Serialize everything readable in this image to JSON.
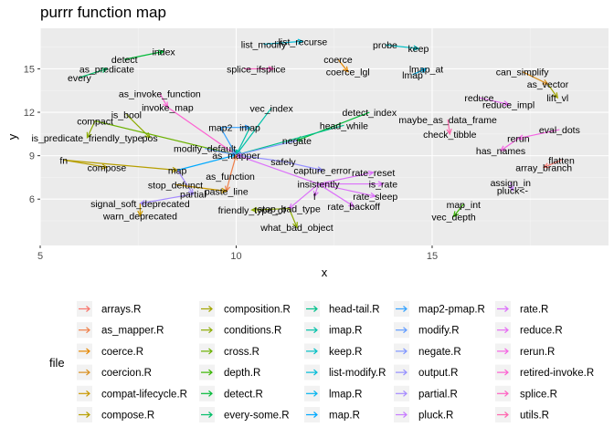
{
  "chart_data": {
    "type": "network",
    "title": "purrr function map",
    "xlabel": "x",
    "ylabel": "y",
    "xlim": [
      5,
      19.5
    ],
    "ylim": [
      2.8,
      17.8
    ],
    "xticks": [
      5,
      10,
      15
    ],
    "yticks": [
      6,
      9,
      12,
      15
    ],
    "grid": true,
    "legend_position": "bottom",
    "legend_title": "file",
    "files": [
      {
        "name": "arrays.R",
        "color": "#F8766D"
      },
      {
        "name": "as_mapper.R",
        "color": "#EF7F49"
      },
      {
        "name": "coerce.R",
        "color": "#E58700"
      },
      {
        "name": "coercion.R",
        "color": "#D98F1F"
      },
      {
        "name": "compat-lifecycle.R",
        "color": "#C99800"
      },
      {
        "name": "compose.R",
        "color": "#B79F00"
      },
      {
        "name": "composition.R",
        "color": "#A3A500"
      },
      {
        "name": "conditions.R",
        "color": "#8CAB00"
      },
      {
        "name": "cross.R",
        "color": "#6BB100"
      },
      {
        "name": "depth.R",
        "color": "#39B600"
      },
      {
        "name": "detect.R",
        "color": "#00BA38"
      },
      {
        "name": "every-some.R",
        "color": "#00BE67"
      },
      {
        "name": "head-tail.R",
        "color": "#00C08B"
      },
      {
        "name": "imap.R",
        "color": "#00C1A9"
      },
      {
        "name": "keep.R",
        "color": "#00BFC4"
      },
      {
        "name": "list-modify.R",
        "color": "#00BCD8"
      },
      {
        "name": "lmap.R",
        "color": "#00B4EF"
      },
      {
        "name": "map.R",
        "color": "#00A9FF"
      },
      {
        "name": "map2-pmap.R",
        "color": "#35A2FF"
      },
      {
        "name": "modify.R",
        "color": "#619CFF"
      },
      {
        "name": "negate.R",
        "color": "#7F96FF"
      },
      {
        "name": "output.R",
        "color": "#9590FF"
      },
      {
        "name": "partial.R",
        "color": "#A58AFF"
      },
      {
        "name": "pluck.R",
        "color": "#C77CFF"
      },
      {
        "name": "rate.R",
        "color": "#DC71FA"
      },
      {
        "name": "reduce.R",
        "color": "#E76BF3"
      },
      {
        "name": "rerun.R",
        "color": "#F564E3"
      },
      {
        "name": "retired-invoke.R",
        "color": "#FD61D1"
      },
      {
        "name": "splice.R",
        "color": "#FF61C3"
      },
      {
        "name": "utils.R",
        "color": "#FF65AE"
      }
    ],
    "nodes": [
      {
        "label": "list_recurse",
        "x": 11.7,
        "y": 16.9
      },
      {
        "label": "list_modify",
        "x": 10.7,
        "y": 16.7
      },
      {
        "label": "probe",
        "x": 13.8,
        "y": 16.65
      },
      {
        "label": "keep",
        "x": 14.65,
        "y": 16.4
      },
      {
        "label": "index",
        "x": 8.15,
        "y": 16.2
      },
      {
        "label": "detect",
        "x": 7.15,
        "y": 15.65
      },
      {
        "label": "coerce",
        "x": 12.6,
        "y": 15.65
      },
      {
        "label": "lmap_at",
        "x": 14.85,
        "y": 15.0
      },
      {
        "label": "as_predicate",
        "x": 6.7,
        "y": 15.0
      },
      {
        "label": "splice_if",
        "x": 10.2,
        "y": 15.0
      },
      {
        "label": "splice",
        "x": 10.95,
        "y": 15.0
      },
      {
        "label": "can_simplify",
        "x": 17.3,
        "y": 14.8
      },
      {
        "label": "coerce_lgl",
        "x": 12.85,
        "y": 14.8
      },
      {
        "label": "every",
        "x": 6.0,
        "y": 14.4
      },
      {
        "label": "lmap",
        "x": 14.5,
        "y": 14.6
      },
      {
        "label": "as_vector",
        "x": 17.95,
        "y": 13.95
      },
      {
        "label": "as_invoke_function",
        "x": 8.05,
        "y": 13.3
      },
      {
        "label": "reduce",
        "x": 16.2,
        "y": 13.0
      },
      {
        "label": "lift_vl",
        "x": 18.2,
        "y": 13.0
      },
      {
        "label": "reduce_impl",
        "x": 16.95,
        "y": 12.55
      },
      {
        "label": "invoke_map",
        "x": 8.25,
        "y": 12.35
      },
      {
        "label": "vec_index",
        "x": 10.9,
        "y": 12.3
      },
      {
        "label": "detect_index",
        "x": 13.4,
        "y": 12.0
      },
      {
        "label": "is_bool",
        "x": 7.2,
        "y": 11.85
      },
      {
        "label": "maybe_as_data_frame",
        "x": 15.4,
        "y": 11.5
      },
      {
        "label": "compact",
        "x": 6.4,
        "y": 11.4
      },
      {
        "label": "head_while",
        "x": 12.75,
        "y": 11.1
      },
      {
        "label": "map2",
        "x": 9.6,
        "y": 10.95
      },
      {
        "label": "imap",
        "x": 10.35,
        "y": 10.95
      },
      {
        "label": "eval_dots",
        "x": 18.25,
        "y": 10.8
      },
      {
        "label": "check_tibble",
        "x": 15.45,
        "y": 10.5
      },
      {
        "label": "is_predicate_friendly_type",
        "x": 6.2,
        "y": 10.25
      },
      {
        "label": "pos",
        "x": 7.8,
        "y": 10.25
      },
      {
        "label": "negate",
        "x": 11.55,
        "y": 10.05
      },
      {
        "label": "rerun",
        "x": 17.2,
        "y": 10.2
      },
      {
        "label": "modify_default",
        "x": 9.2,
        "y": 9.5
      },
      {
        "label": "has_names",
        "x": 16.75,
        "y": 9.35
      },
      {
        "label": "as_mapper",
        "x": 10.0,
        "y": 9.05
      },
      {
        "label": "fn",
        "x": 5.6,
        "y": 8.7
      },
      {
        "label": "safely",
        "x": 11.2,
        "y": 8.6
      },
      {
        "label": "flatten",
        "x": 18.3,
        "y": 8.7
      },
      {
        "label": "compose",
        "x": 6.7,
        "y": 8.2
      },
      {
        "label": "map",
        "x": 8.5,
        "y": 8.0
      },
      {
        "label": "capture_error",
        "x": 12.2,
        "y": 8.0
      },
      {
        "label": "array_branch",
        "x": 17.85,
        "y": 8.2
      },
      {
        "label": "rate_reset",
        "x": 13.5,
        "y": 7.85
      },
      {
        "label": "as_function",
        "x": 9.85,
        "y": 7.6
      },
      {
        "label": "assign_in",
        "x": 17.0,
        "y": 7.15
      },
      {
        "label": "stop_defunct",
        "x": 8.45,
        "y": 7.0
      },
      {
        "label": "insistently",
        "x": 12.1,
        "y": 7.05
      },
      {
        "label": "is_rate",
        "x": 13.75,
        "y": 7.05
      },
      {
        "label": "pluck<-",
        "x": 17.05,
        "y": 6.6
      },
      {
        "label": "paste_line",
        "x": 9.75,
        "y": 6.55
      },
      {
        "label": "partial",
        "x": 8.9,
        "y": 6.35
      },
      {
        "label": "rate_sleep",
        "x": 13.55,
        "y": 6.2
      },
      {
        "label": "f",
        "x": 12.0,
        "y": 6.2
      },
      {
        "label": "signal_soft_deprecated",
        "x": 7.55,
        "y": 5.7
      },
      {
        "label": "map_int",
        "x": 15.8,
        "y": 5.65
      },
      {
        "label": "rate_backoff",
        "x": 13.0,
        "y": 5.5
      },
      {
        "label": "stop_bad_type",
        "x": 11.35,
        "y": 5.35
      },
      {
        "label": "friendly_type_of",
        "x": 10.4,
        "y": 5.25
      },
      {
        "label": "warn_deprecated",
        "x": 7.55,
        "y": 4.85
      },
      {
        "label": "vec_depth",
        "x": 15.55,
        "y": 4.8
      },
      {
        "label": "what_bad_object",
        "x": 11.55,
        "y": 4.05
      }
    ],
    "edges": [
      {
        "from": "list_modify",
        "to": "list_recurse",
        "file": "list-modify.R"
      },
      {
        "from": "probe",
        "to": "keep",
        "file": "keep.R"
      },
      {
        "from": "detect",
        "to": "index",
        "file": "detect.R"
      },
      {
        "from": "every",
        "to": "as_predicate",
        "file": "every-some.R"
      },
      {
        "from": "splice_if",
        "to": "splice",
        "file": "splice.R"
      },
      {
        "from": "coerce",
        "to": "coerce_lgl",
        "file": "coerce.R"
      },
      {
        "from": "lmap",
        "to": "lmap_at",
        "file": "lmap.R"
      },
      {
        "from": "can_simplify",
        "to": "as_vector",
        "file": "coercion.R"
      },
      {
        "from": "as_vector",
        "to": "lift_vl",
        "file": "composition.R"
      },
      {
        "from": "reduce",
        "to": "reduce_impl",
        "file": "reduce.R"
      },
      {
        "from": "as_invoke_function",
        "to": "invoke_map",
        "file": "retired-invoke.R"
      },
      {
        "from": "invoke_map",
        "to": "as_mapper",
        "file": "retired-invoke.R"
      },
      {
        "from": "vec_index",
        "to": "as_mapper",
        "file": "imap.R"
      },
      {
        "from": "detect_index",
        "to": "negate",
        "file": "detect.R"
      },
      {
        "from": "head_while",
        "to": "as_mapper",
        "file": "head-tail.R"
      },
      {
        "from": "maybe_as_data_frame",
        "to": "check_tibble",
        "file": "utils.R"
      },
      {
        "from": "is_bool",
        "to": "pos",
        "file": "conditions.R"
      },
      {
        "from": "compact",
        "to": "is_predicate_friendly_type",
        "file": "conditions.R"
      },
      {
        "from": "compact",
        "to": "as_mapper",
        "file": "cross.R"
      },
      {
        "from": "map2",
        "to": "imap",
        "file": "map2-pmap.R"
      },
      {
        "from": "map2",
        "to": "as_mapper",
        "file": "map2-pmap.R"
      },
      {
        "from": "imap",
        "to": "as_mapper",
        "file": "imap.R"
      },
      {
        "from": "eval_dots",
        "to": "rerun",
        "file": "rerun.R"
      },
      {
        "from": "rerun",
        "to": "has_names",
        "file": "rerun.R"
      },
      {
        "from": "negate",
        "to": "as_mapper",
        "file": "negate.R"
      },
      {
        "from": "modify_default",
        "to": "as_mapper",
        "file": "modify.R"
      },
      {
        "from": "safely",
        "to": "as_mapper",
        "file": "output.R"
      },
      {
        "from": "safely",
        "to": "capture_error",
        "file": "output.R"
      },
      {
        "from": "flatten",
        "to": "array_branch",
        "file": "arrays.R"
      },
      {
        "from": "fn",
        "to": "compose",
        "file": "compose.R"
      },
      {
        "from": "fn",
        "to": "map",
        "file": "compose.R"
      },
      {
        "from": "map",
        "to": "as_mapper",
        "file": "map.R"
      },
      {
        "from": "map",
        "to": "partial",
        "file": "partial.R"
      },
      {
        "from": "insistently",
        "to": "as_mapper",
        "file": "rate.R"
      },
      {
        "from": "insistently",
        "to": "rate_reset",
        "file": "rate.R"
      },
      {
        "from": "insistently",
        "to": "is_rate",
        "file": "rate.R"
      },
      {
        "from": "insistently",
        "to": "rate_sleep",
        "file": "rate.R"
      },
      {
        "from": "insistently",
        "to": "rate_backoff",
        "file": "rate.R"
      },
      {
        "from": "insistently",
        "to": "f",
        "file": "rate.R"
      },
      {
        "from": "insistently",
        "to": "stop_bad_type",
        "file": "rate.R"
      },
      {
        "from": "as_function",
        "to": "as_mapper",
        "file": "as_mapper.R"
      },
      {
        "from": "as_function",
        "to": "paste_line",
        "file": "as_mapper.R"
      },
      {
        "from": "assign_in",
        "to": "pluck<-",
        "file": "pluck.R"
      },
      {
        "from": "stop_defunct",
        "to": "paste_line",
        "file": "compat-lifecycle.R"
      },
      {
        "from": "partial",
        "to": "signal_soft_deprecated",
        "file": "partial.R"
      },
      {
        "from": "signal_soft_deprecated",
        "to": "warn_deprecated",
        "file": "compat-lifecycle.R"
      },
      {
        "from": "stop_bad_type",
        "to": "friendly_type_of",
        "file": "conditions.R"
      },
      {
        "from": "stop_bad_type",
        "to": "what_bad_object",
        "file": "conditions.R"
      },
      {
        "from": "map_int",
        "to": "vec_depth",
        "file": "depth.R"
      }
    ]
  }
}
